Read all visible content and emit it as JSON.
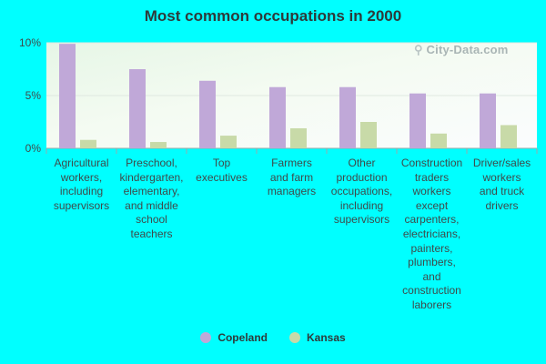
{
  "chart_data": {
    "type": "bar",
    "title": "Most common occupations in 2000",
    "categories": [
      "Agricultural workers, including supervisors",
      "Preschool, kindergarten, elementary, and middle school teachers",
      "Top executives",
      "Farmers and farm managers",
      "Other production occupations, including supervisors",
      "Construction traders workers except carpenters, electricians, painters, plumbers, and construction laborers",
      "Driver/sales workers and truck drivers"
    ],
    "category_lines": [
      [
        "Agricultural",
        "workers,",
        "including",
        "supervisors"
      ],
      [
        "Preschool,",
        "kindergarten,",
        "elementary,",
        "and middle",
        "school",
        "teachers"
      ],
      [
        "Top",
        "executives"
      ],
      [
        "Farmers",
        "and farm",
        "managers"
      ],
      [
        "Other",
        "production",
        "occupations,",
        "including",
        "supervisors"
      ],
      [
        "Construction",
        "traders",
        "workers",
        "except",
        "carpenters,",
        "electricians,",
        "painters,",
        "plumbers,",
        "and",
        "construction",
        "laborers"
      ],
      [
        "Driver/sales",
        "workers",
        "and truck",
        "drivers"
      ]
    ],
    "series": [
      {
        "name": "Copeland",
        "color": "#c0a8d8",
        "values": [
          9.9,
          7.5,
          6.4,
          5.8,
          5.8,
          5.2,
          5.2
        ]
      },
      {
        "name": "Kansas",
        "color": "#c8daa8",
        "values": [
          0.8,
          0.6,
          1.2,
          1.9,
          2.5,
          1.4,
          2.2
        ]
      }
    ],
    "yticks": [
      "0%",
      "5%",
      "10%"
    ],
    "ylim": [
      0,
      10
    ],
    "grid": true,
    "legend_position": "bottom"
  },
  "watermark": {
    "text": "City-Data.com",
    "icon": "search-icon"
  }
}
